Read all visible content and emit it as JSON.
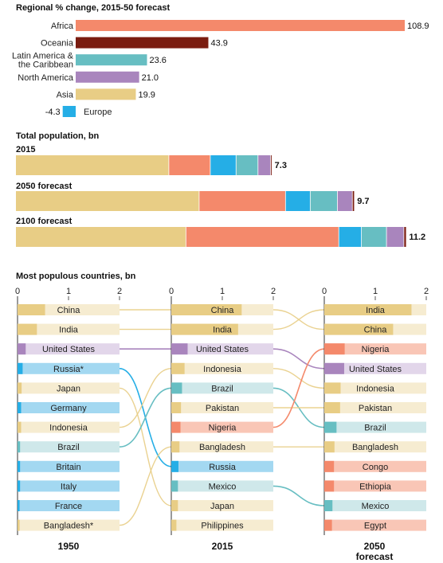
{
  "colors": {
    "Africa": "#f4896b",
    "Oceania": "#7a1c10",
    "Latin America & the Caribbean": "#67bec2",
    "North America": "#a985bd",
    "Asia": "#e8cd85",
    "Europe": "#25aee6",
    "Asia-light": "#f6ecd1",
    "Africa-light": "#f9c6b6",
    "Latin-light": "#cfe8ea",
    "North-light": "#e2d6ea",
    "Europe-light": "#a3d8f1",
    "Oceania-light": "#d9b2aa"
  },
  "chart_data": [
    {
      "type": "bar",
      "title": "Regional % change, 2015-50 forecast",
      "categories": [
        "Africa",
        "Oceania",
        "Latin America & the Caribbean",
        "North America",
        "Asia",
        "Europe"
      ],
      "category_lines": [
        [
          "Africa"
        ],
        [
          "Oceania"
        ],
        [
          "Latin America &",
          "the Caribbean"
        ],
        [
          "North America"
        ],
        [
          "Asia"
        ],
        [
          "Europe"
        ]
      ],
      "values": [
        108.9,
        43.9,
        23.6,
        21.0,
        19.9,
        -4.3
      ],
      "value_labels": [
        "108.9",
        "43.9",
        "23.6",
        "21.0",
        "19.9",
        "-4.3"
      ]
    },
    {
      "type": "bar",
      "stacked": true,
      "title": "Total population, bn",
      "region_order": [
        "Asia",
        "Africa",
        "Europe",
        "Latin America & the Caribbean",
        "North America",
        "Oceania"
      ],
      "rows": [
        {
          "label": "2015",
          "total_label": "7.3",
          "values": [
            4.4,
            1.19,
            0.74,
            0.63,
            0.36,
            0.04
          ]
        },
        {
          "label": "2050 forecast",
          "total_label": "9.7",
          "values": [
            5.27,
            2.48,
            0.71,
            0.78,
            0.43,
            0.06
          ]
        },
        {
          "label": "2100 forecast",
          "total_label": "11.2",
          "values": [
            4.89,
            4.39,
            0.65,
            0.72,
            0.5,
            0.07
          ]
        }
      ]
    },
    {
      "type": "bar",
      "title": "Most populous countries, bn",
      "xlim": [
        0,
        2
      ],
      "ticks": [
        "0",
        "1",
        "2"
      ],
      "panels": [
        {
          "label": "1950",
          "countries": [
            {
              "name": "China",
              "value": 0.54,
              "region": "Asia"
            },
            {
              "name": "India",
              "value": 0.38,
              "region": "Asia"
            },
            {
              "name": "United States",
              "value": 0.16,
              "region": "North America"
            },
            {
              "name": "Russia*",
              "value": 0.1,
              "region": "Europe"
            },
            {
              "name": "Japan",
              "value": 0.08,
              "region": "Asia"
            },
            {
              "name": "Germany",
              "value": 0.07,
              "region": "Europe"
            },
            {
              "name": "Indonesia",
              "value": 0.07,
              "region": "Asia"
            },
            {
              "name": "Brazil",
              "value": 0.05,
              "region": "Latin America & the Caribbean"
            },
            {
              "name": "Britain",
              "value": 0.05,
              "region": "Europe"
            },
            {
              "name": "Italy",
              "value": 0.05,
              "region": "Europe"
            },
            {
              "name": "France",
              "value": 0.04,
              "region": "Europe"
            },
            {
              "name": "Bangladesh*",
              "value": 0.04,
              "region": "Asia"
            }
          ]
        },
        {
          "label": "2015",
          "countries": [
            {
              "name": "China",
              "value": 1.38,
              "region": "Asia"
            },
            {
              "name": "India",
              "value": 1.31,
              "region": "Asia"
            },
            {
              "name": "United States",
              "value": 0.32,
              "region": "North America"
            },
            {
              "name": "Indonesia",
              "value": 0.26,
              "region": "Asia"
            },
            {
              "name": "Brazil",
              "value": 0.21,
              "region": "Latin America & the Caribbean"
            },
            {
              "name": "Pakistan",
              "value": 0.19,
              "region": "Asia"
            },
            {
              "name": "Nigeria",
              "value": 0.18,
              "region": "Africa"
            },
            {
              "name": "Bangladesh",
              "value": 0.16,
              "region": "Asia"
            },
            {
              "name": "Russia",
              "value": 0.14,
              "region": "Europe"
            },
            {
              "name": "Mexico",
              "value": 0.13,
              "region": "Latin America & the Caribbean"
            },
            {
              "name": "Japan",
              "value": 0.13,
              "region": "Asia"
            },
            {
              "name": "Philippines",
              "value": 0.1,
              "region": "Asia"
            }
          ]
        },
        {
          "label": "2050",
          "label2": "forecast",
          "countries": [
            {
              "name": "India",
              "value": 1.71,
              "region": "Asia"
            },
            {
              "name": "China",
              "value": 1.35,
              "region": "Asia"
            },
            {
              "name": "Nigeria",
              "value": 0.4,
              "region": "Africa"
            },
            {
              "name": "United States",
              "value": 0.39,
              "region": "North America"
            },
            {
              "name": "Indonesia",
              "value": 0.32,
              "region": "Asia"
            },
            {
              "name": "Pakistan",
              "value": 0.31,
              "region": "Asia"
            },
            {
              "name": "Brazil",
              "value": 0.24,
              "region": "Latin America & the Caribbean"
            },
            {
              "name": "Bangladesh",
              "value": 0.2,
              "region": "Asia"
            },
            {
              "name": "Congo",
              "value": 0.19,
              "region": "Africa"
            },
            {
              "name": "Ethiopia",
              "value": 0.19,
              "region": "Africa"
            },
            {
              "name": "Mexico",
              "value": 0.16,
              "region": "Latin America & the Caribbean"
            },
            {
              "name": "Egypt",
              "value": 0.15,
              "region": "Africa"
            }
          ]
        }
      ]
    }
  ]
}
